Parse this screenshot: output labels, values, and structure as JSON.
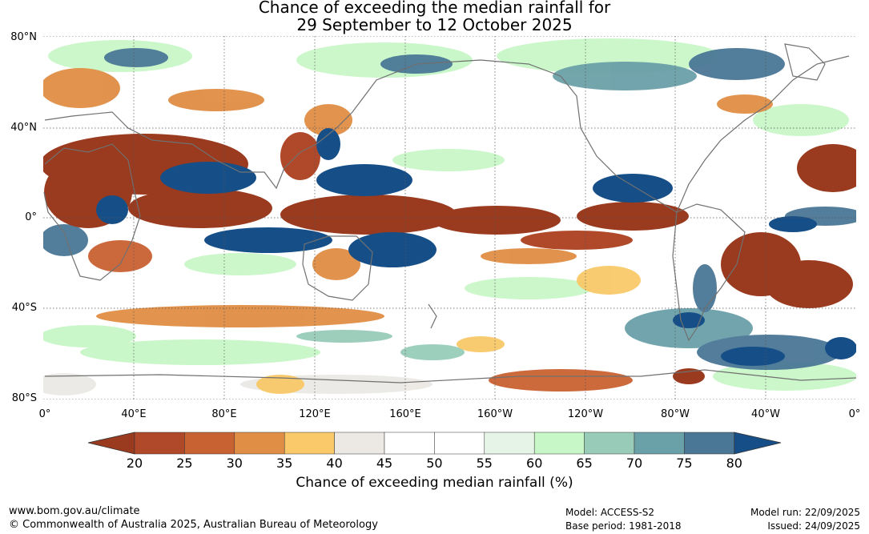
{
  "title": {
    "line1": "Chance of exceeding the median rainfall for",
    "line2": "29 September to 12 October 2025"
  },
  "map": {
    "lat_labels": [
      "80°N",
      "40°N",
      "0°",
      "40°S",
      "80°S"
    ],
    "lon_labels": [
      "0°",
      "40°E",
      "80°E",
      "120°E",
      "160°E",
      "160°W",
      "120°W",
      "80°W",
      "40°W",
      "0°"
    ],
    "gridlines": "dotted",
    "background": "#ffffff"
  },
  "colorbar": {
    "ticks": [
      "20",
      "25",
      "30",
      "35",
      "40",
      "45",
      "50",
      "55",
      "60",
      "65",
      "70",
      "75",
      "80"
    ],
    "colors": [
      "#9a3a1e",
      "#b0492a",
      "#c96232",
      "#e08e45",
      "#f9c96a",
      "#ece9e5",
      "#ffffff",
      "#ffffff",
      "#e6f4e7",
      "#c8f7c7",
      "#98ccb9",
      "#6aa0a8",
      "#4a7796",
      "#164f88"
    ],
    "label": "Chance of exceeding median rainfall (%)"
  },
  "footer": {
    "website": "www.bom.gov.au/climate",
    "copyright": "© Commonwealth of Australia 2025, Australian Bureau of Meteorology",
    "model": "Model: ACCESS-S2",
    "base_period": "Base period: 1981-2018",
    "model_run": "Model run: 22/09/2025",
    "issued": "Issued: 24/09/2025"
  }
}
